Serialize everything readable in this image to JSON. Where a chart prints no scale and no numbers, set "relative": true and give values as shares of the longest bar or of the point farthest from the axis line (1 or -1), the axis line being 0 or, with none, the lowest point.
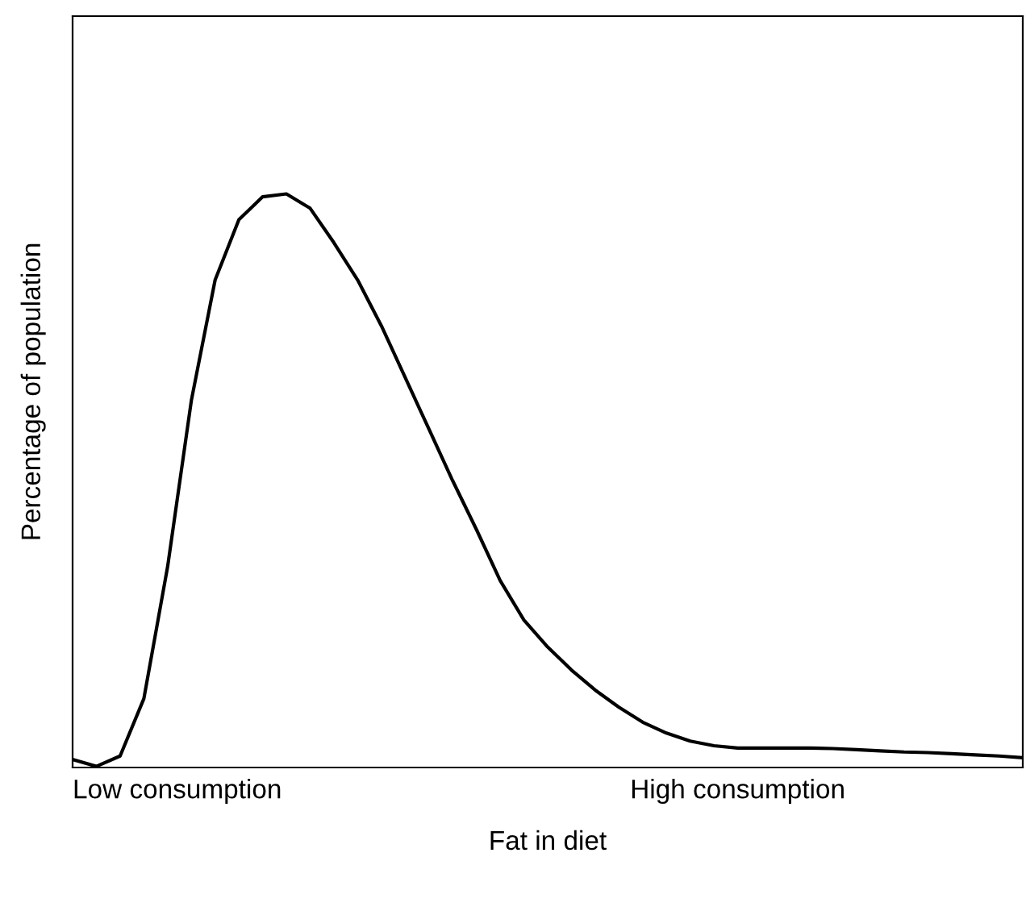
{
  "chart_data": {
    "type": "line",
    "relative": true,
    "xlabel": "Fat in diet",
    "ylabel": "Percentage of population",
    "categories": [
      null,
      null,
      null,
      null,
      null,
      null,
      null,
      null,
      null,
      null,
      null,
      null,
      null,
      null,
      null,
      null,
      null,
      null,
      null,
      null,
      null,
      null,
      null,
      null,
      null,
      null,
      null,
      null,
      null,
      null,
      null,
      null,
      null,
      null,
      null,
      null,
      null,
      null,
      null,
      null,
      null
    ],
    "series": [
      {
        "color": "#000000",
        "values": [
          0.014,
          0.002,
          0.02,
          0.12,
          0.35,
          0.64,
          0.85,
          0.955,
          0.995,
          1.0,
          0.975,
          0.915,
          0.85,
          0.77,
          0.68,
          0.59,
          0.5,
          0.415,
          0.326,
          0.257,
          0.21,
          0.17,
          0.135,
          0.105,
          0.079,
          0.06,
          0.046,
          0.038,
          0.034,
          0.034,
          0.034,
          0.034,
          0.033,
          0.031,
          0.029,
          0.027,
          0.026,
          0.024,
          0.022,
          0.02,
          0.017
        ]
      }
    ],
    "annotations": [
      "Low consumption",
      "High consumption"
    ],
    "legend": false,
    "marker": "none",
    "line_style": "solid"
  }
}
